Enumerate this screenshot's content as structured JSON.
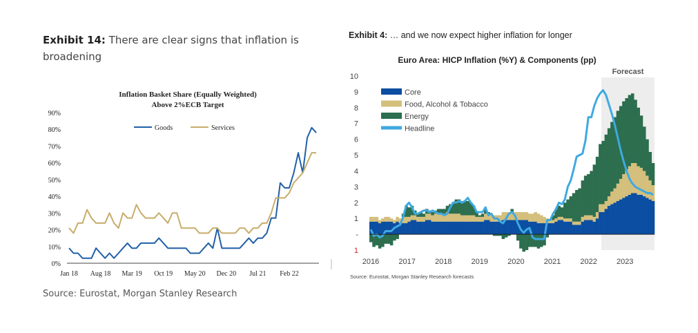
{
  "left_exhibit": {
    "label": "Exhibit 14:",
    "text": " There are clear signs that inflation is broadening",
    "source": "Source: Eurostat, Morgan Stanley Research"
  },
  "right_exhibit": {
    "label": "Exhibit 4:",
    "text": " … and we now expect higher inflation for longer",
    "source": "Source: Eurostat, Morgan Stanley Research forecasts"
  },
  "chart_data": [
    {
      "type": "line",
      "title": "Inflation Basket Share (Equally Weighted)",
      "subtitle": "Above 2%ECB Target",
      "xlabel": "",
      "ylabel": "",
      "ylim": [
        0,
        90
      ],
      "yticks": [
        "0%",
        "10%",
        "20%",
        "30%",
        "40%",
        "50%",
        "60%",
        "70%",
        "80%",
        "90%"
      ],
      "xticks": [
        "Jan 18",
        "Aug 18",
        "Mar 19",
        "Oct 19",
        "May 20",
        "Dec 20",
        "Jul 21",
        "Feb 22"
      ],
      "legend_position": "top-center",
      "grid": false,
      "series": [
        {
          "name": "Goods",
          "color": "#1f5fa8",
          "values": [
            9,
            6,
            6,
            3,
            3,
            3,
            9,
            6,
            3,
            6,
            3,
            6,
            9,
            12,
            9,
            9,
            12,
            12,
            12,
            12,
            15,
            12,
            9,
            9,
            9,
            9,
            9,
            6,
            6,
            6,
            9,
            12,
            9,
            21,
            9,
            9,
            9,
            9,
            9,
            12,
            15,
            12,
            15,
            15,
            18,
            27,
            27,
            48,
            45,
            45,
            54,
            66,
            54,
            75,
            81,
            78
          ]
        },
        {
          "name": "Services",
          "color": "#c7ad6a",
          "values": [
            21,
            18,
            24,
            24,
            32,
            27,
            24,
            24,
            24,
            30,
            24,
            21,
            30,
            27,
            27,
            35,
            30,
            27,
            27,
            27,
            30,
            27,
            24,
            30,
            30,
            21,
            21,
            21,
            21,
            18,
            18,
            18,
            21,
            21,
            18,
            18,
            18,
            18,
            21,
            21,
            18,
            21,
            21,
            24,
            24,
            30,
            39,
            39,
            39,
            42,
            48,
            51,
            54,
            60,
            66,
            66
          ]
        }
      ]
    },
    {
      "type": "bar",
      "title": "Euro Area: HICP Inflation (%Y) & Components (pp)",
      "annotation": "Forecast",
      "ylim": [
        -1,
        10
      ],
      "yticks": [
        "10",
        "9",
        "8",
        "7",
        "6",
        "5",
        "4",
        "3",
        "2",
        "1",
        "-",
        "1"
      ],
      "xticks": [
        "2016",
        "2017",
        "2018",
        "2019",
        "2020",
        "2021",
        "2022",
        "2023"
      ],
      "legend_position": "top-left",
      "legend": [
        {
          "name": "Core",
          "color": "#0b4ea2"
        },
        {
          "name": "Food, Alcohol & Tobacco",
          "color": "#d4bf7c"
        },
        {
          "name": "Energy",
          "color": "#2c6e4e"
        },
        {
          "name": "Headline",
          "color": "#3fa9e0"
        }
      ],
      "series": {
        "x_start": 2016,
        "step_years": 0.08333333333333333,
        "forecast_start": 2022.35,
        "core": [
          0.8,
          0.8,
          0.8,
          0.7,
          0.8,
          0.8,
          0.8,
          0.8,
          0.7,
          0.8,
          0.7,
          0.7,
          0.7,
          0.8,
          0.9,
          0.9,
          0.8,
          0.8,
          0.8,
          0.9,
          0.9,
          0.8,
          0.8,
          0.8,
          0.8,
          0.8,
          0.8,
          0.8,
          0.8,
          0.8,
          0.8,
          0.8,
          0.8,
          0.8,
          0.8,
          0.8,
          0.8,
          0.8,
          0.8,
          0.9,
          0.9,
          0.8,
          0.8,
          0.8,
          0.8,
          0.9,
          0.9,
          0.9,
          0.9,
          0.9,
          0.9,
          0.9,
          0.9,
          0.9,
          0.8,
          0.8,
          0.8,
          0.7,
          0.7,
          0.7,
          0.7,
          0.7,
          0.7,
          0.8,
          0.9,
          0.9,
          0.8,
          0.8,
          0.8,
          0.6,
          0.6,
          0.6,
          0.8,
          0.9,
          0.9,
          0.9,
          0.8,
          1.0,
          1.4,
          1.4,
          1.6,
          1.8,
          1.9,
          2.0,
          2.1,
          2.2,
          2.3,
          2.4,
          2.5,
          2.6,
          2.6,
          2.5,
          2.5,
          2.4,
          2.3,
          2.2,
          2.1,
          2.0,
          2.0,
          1.9,
          1.9,
          1.8,
          1.8,
          1.8,
          1.7,
          1.7,
          1.6
        ],
        "food": [
          0.3,
          0.3,
          0.3,
          0.2,
          0.2,
          0.3,
          0.3,
          0.2,
          0.2,
          0.3,
          0.3,
          0.4,
          0.4,
          0.3,
          0.3,
          0.3,
          0.3,
          0.3,
          0.3,
          0.4,
          0.4,
          0.4,
          0.5,
          0.5,
          0.5,
          0.5,
          0.6,
          0.5,
          0.5,
          0.5,
          0.5,
          0.4,
          0.4,
          0.4,
          0.4,
          0.4,
          0.3,
          0.3,
          0.3,
          0.4,
          0.4,
          0.4,
          0.4,
          0.4,
          0.4,
          0.5,
          0.5,
          0.5,
          0.5,
          0.5,
          0.5,
          0.5,
          0.5,
          0.5,
          0.5,
          0.5,
          0.6,
          0.6,
          0.5,
          0.4,
          0.3,
          0.2,
          0.2,
          0.2,
          0.2,
          0.2,
          0.2,
          0.2,
          0.2,
          0.2,
          0.2,
          0.2,
          0.3,
          0.3,
          0.3,
          0.3,
          0.3,
          0.4,
          0.5,
          0.5,
          0.5,
          0.6,
          0.8,
          0.9,
          1.1,
          1.3,
          1.5,
          1.7,
          1.8,
          1.9,
          1.9,
          1.8,
          1.7,
          1.6,
          1.4,
          1.2,
          1.0,
          0.8,
          0.6,
          0.5,
          0.4,
          0.4,
          0.3,
          0.3,
          0.3,
          0.3,
          0.3
        ],
        "energy": [
          -0.5,
          -0.8,
          -0.7,
          -0.9,
          -0.8,
          -0.6,
          -0.6,
          -0.7,
          -0.4,
          -0.3,
          0.0,
          0.2,
          0.7,
          0.6,
          0.6,
          0.3,
          0.2,
          0.3,
          0.2,
          0.3,
          0.2,
          0.2,
          0.2,
          0.3,
          0.3,
          0.3,
          0.4,
          0.6,
          0.7,
          0.9,
          0.9,
          0.9,
          0.9,
          0.9,
          0.8,
          0.6,
          0.3,
          0.1,
          0.2,
          0.3,
          0.1,
          0.0,
          -0.1,
          -0.1,
          -0.1,
          -0.3,
          -0.2,
          -0.1,
          0.2,
          0.0,
          -0.4,
          -0.9,
          -1.1,
          -1.0,
          -0.8,
          -0.8,
          -0.8,
          -0.9,
          -0.8,
          -0.7,
          -0.2,
          0.0,
          0.3,
          0.6,
          0.7,
          0.6,
          1.0,
          1.2,
          1.4,
          1.8,
          2.0,
          2.1,
          2.3,
          2.5,
          2.6,
          2.8,
          3.3,
          3.5,
          3.8,
          4.0,
          4.2,
          4.3,
          4.4,
          4.5,
          4.6,
          4.6,
          4.6,
          4.5,
          4.5,
          4.4,
          4.0,
          3.7,
          3.3,
          2.8,
          2.3,
          1.8,
          1.4,
          1.0,
          0.7,
          0.5,
          0.4,
          0.4,
          0.4,
          0.4,
          0.4,
          0.4,
          0.4
        ],
        "headline": [
          0.3,
          -0.1,
          0.0,
          -0.2,
          -0.1,
          0.2,
          0.2,
          0.2,
          0.4,
          0.5,
          0.6,
          1.1,
          1.8,
          2.0,
          1.7,
          1.3,
          1.3,
          1.4,
          1.5,
          1.5,
          1.4,
          1.5,
          1.4,
          1.3,
          1.3,
          1.2,
          1.3,
          1.7,
          2.0,
          2.0,
          2.1,
          2.0,
          2.1,
          2.3,
          2.0,
          1.8,
          1.4,
          1.4,
          1.4,
          1.7,
          1.2,
          1.3,
          1.0,
          1.0,
          0.8,
          0.7,
          1.0,
          1.3,
          1.4,
          1.2,
          0.7,
          0.3,
          0.1,
          0.3,
          0.4,
          -0.2,
          -0.3,
          -0.3,
          -0.3,
          -0.3,
          0.9,
          0.9,
          1.3,
          1.6,
          2.0,
          1.9,
          2.2,
          3.0,
          3.4,
          4.1,
          4.9,
          5.0,
          5.1,
          5.9,
          7.4,
          7.4,
          8.1,
          8.6,
          8.9,
          9.1,
          8.8,
          8.2,
          7.6,
          6.9,
          6.1,
          5.3,
          4.6,
          4.0,
          3.5,
          3.2,
          3.0,
          2.9,
          2.8,
          2.7,
          2.6,
          2.6,
          2.5
        ]
      }
    }
  ]
}
